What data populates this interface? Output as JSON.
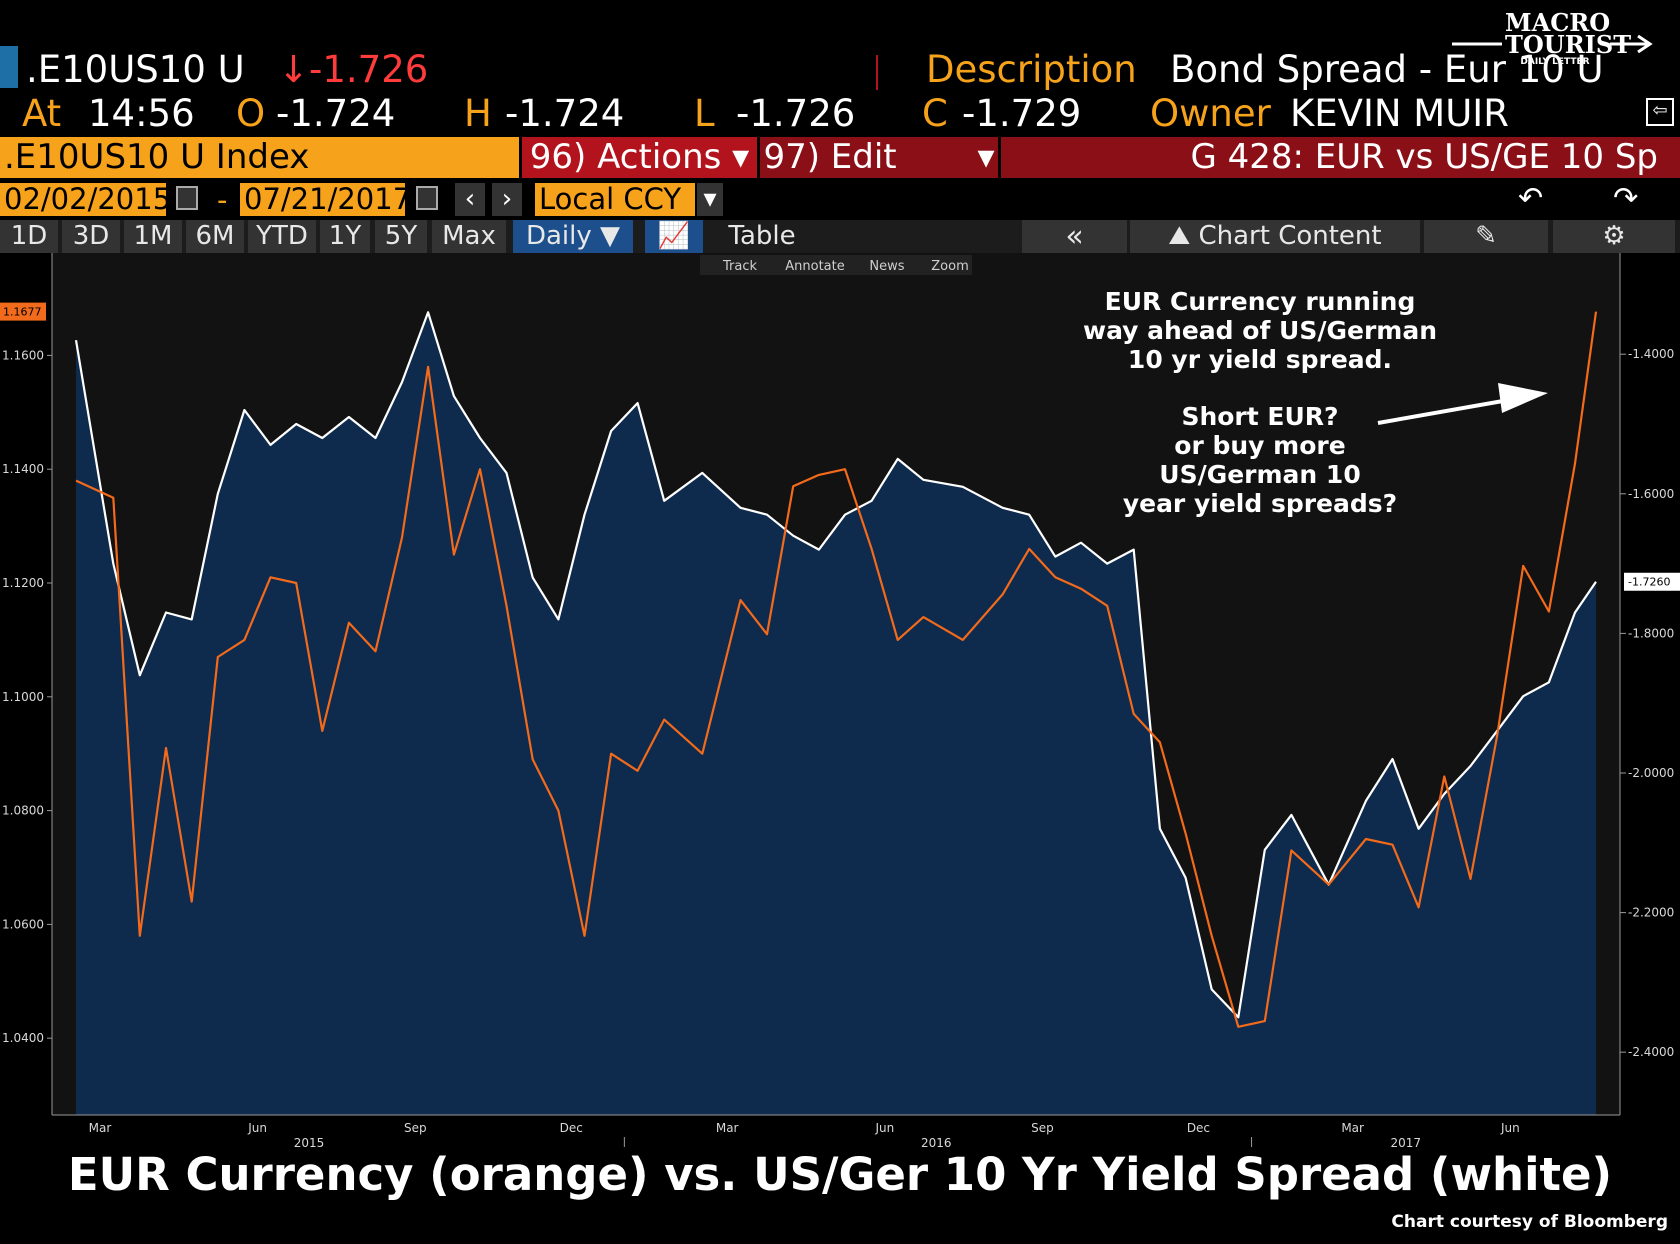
{
  "header": {
    "ticker": ".E10US10 U",
    "last_change": "↓-1.726",
    "description_label": "Description",
    "description_value": "Bond Spread - Eur 10 U",
    "at_label": "At",
    "time": "14:56",
    "open_label": "O",
    "open": "-1.724",
    "high_label": "H",
    "high": "-1.724",
    "low_label": "L",
    "low": "-1.726",
    "close_label": "C",
    "close": "-1.729",
    "owner_label": "Owner",
    "owner": "KEVIN MUIR"
  },
  "logo": {
    "line1": "MACRO",
    "line2": "TOURIST",
    "line3": "DAILY LETTER"
  },
  "commandbar": {
    "index": ".E10US10 U Index",
    "actions": "96) Actions ▾",
    "edit": "97) Edit",
    "edit_arrow": "▾",
    "graph_title": "G 428: EUR vs US/GE 10 Sp"
  },
  "datebar": {
    "start": "02/02/2015",
    "dash": "-",
    "end": "07/21/2017",
    "currency": "Local CCY",
    "currency_arrow": "▾"
  },
  "toolbar": {
    "ranges": [
      "1D",
      "3D",
      "1M",
      "6M",
      "YTD",
      "1Y",
      "5Y",
      "Max"
    ],
    "frequency": "Daily ▼",
    "table": "Table",
    "collapse": "«",
    "chart_content": "Chart Content",
    "subtools": [
      "Track",
      "Annotate",
      "News",
      "Zoom"
    ]
  },
  "annotation": {
    "text1": [
      "EUR Currency running",
      "way ahead of US/German",
      "10 yr yield spread."
    ],
    "text2": [
      "Short EUR?",
      "or buy more",
      "US/German 10",
      "year yield spreads?"
    ]
  },
  "footer": {
    "title": "EUR Currency (orange) vs. US/Ger 10 Yr Yield Spread (white)",
    "credit": "Chart courtesy of Bloomberg"
  },
  "colors": {
    "eur": "#f26a1b",
    "spread": "#ffffff",
    "area": "#0e2a4d",
    "plot_bg": "#121212",
    "amber": "#f7a21b"
  },
  "chart_data": {
    "type": "line",
    "x_labels": [
      "Mar",
      "Jun",
      "Sep",
      "Dec",
      "Mar",
      "Jun",
      "Sep",
      "Dec",
      "Mar",
      "Jun"
    ],
    "year_labels": [
      "2015",
      "2016",
      "2017"
    ],
    "left_axis": {
      "ticks": [
        "1.1600",
        "1.1400",
        "1.1200",
        "1.1000",
        "1.0800",
        "1.0600",
        "1.0400"
      ],
      "ylim": [
        1.0265,
        1.178
      ],
      "last_label": "1.1677"
    },
    "right_axis": {
      "ticks": [
        "-1.4000",
        "-1.6000",
        "-1.8000",
        "-2.0000",
        "-2.2000",
        "-2.4000"
      ],
      "ylim": [
        -2.49,
        -1.255
      ],
      "last_label": "-1.7260"
    },
    "series": [
      {
        "name": "EUR Currency",
        "axis": "left",
        "x": [
          "2015-02",
          "2015-03",
          "2015-03",
          "2015-04",
          "2015-04",
          "2015-05",
          "2015-05",
          "2015-06",
          "2015-06",
          "2015-07",
          "2015-07",
          "2015-08",
          "2015-08",
          "2015-09",
          "2015-09",
          "2015-10",
          "2015-10",
          "2015-11",
          "2015-11",
          "2015-12",
          "2015-12",
          "2016-01",
          "2016-01",
          "2016-02",
          "2016-03",
          "2016-03",
          "2016-04",
          "2016-04",
          "2016-05",
          "2016-05",
          "2016-06",
          "2016-06",
          "2016-07",
          "2016-08",
          "2016-08",
          "2016-09",
          "2016-09",
          "2016-10",
          "2016-10",
          "2016-11",
          "2016-11",
          "2016-12",
          "2016-12",
          "2017-01",
          "2017-01",
          "2017-02",
          "2017-03",
          "2017-03",
          "2017-04",
          "2017-04",
          "2017-05",
          "2017-05",
          "2017-06",
          "2017-06",
          "2017-07",
          "2017-07"
        ],
        "values": [
          1.138,
          1.135,
          1.058,
          1.091,
          1.064,
          1.107,
          1.11,
          1.121,
          1.12,
          1.094,
          1.113,
          1.108,
          1.128,
          1.158,
          1.125,
          1.14,
          1.116,
          1.089,
          1.08,
          1.058,
          1.09,
          1.087,
          1.096,
          1.09,
          1.117,
          1.111,
          1.137,
          1.139,
          1.14,
          1.126,
          1.11,
          1.114,
          1.11,
          1.118,
          1.126,
          1.121,
          1.119,
          1.116,
          1.097,
          1.092,
          1.076,
          1.058,
          1.042,
          1.043,
          1.073,
          1.067,
          1.075,
          1.074,
          1.063,
          1.086,
          1.068,
          1.093,
          1.123,
          1.115,
          1.141,
          1.1677
        ]
      },
      {
        "name": "US/Ger 10 Yr Yield Spread",
        "axis": "right",
        "x": [
          "2015-02",
          "2015-03",
          "2015-03",
          "2015-04",
          "2015-04",
          "2015-05",
          "2015-05",
          "2015-06",
          "2015-06",
          "2015-07",
          "2015-07",
          "2015-08",
          "2015-08",
          "2015-09",
          "2015-09",
          "2015-10",
          "2015-10",
          "2015-11",
          "2015-11",
          "2015-12",
          "2015-12",
          "2016-01",
          "2016-01",
          "2016-02",
          "2016-03",
          "2016-03",
          "2016-04",
          "2016-04",
          "2016-05",
          "2016-05",
          "2016-06",
          "2016-06",
          "2016-07",
          "2016-08",
          "2016-08",
          "2016-09",
          "2016-09",
          "2016-10",
          "2016-10",
          "2016-11",
          "2016-11",
          "2016-12",
          "2016-12",
          "2017-01",
          "2017-01",
          "2017-02",
          "2017-03",
          "2017-03",
          "2017-04",
          "2017-04",
          "2017-05",
          "2017-05",
          "2017-06",
          "2017-06",
          "2017-07",
          "2017-07"
        ],
        "values": [
          -1.38,
          -1.7,
          -1.86,
          -1.77,
          -1.78,
          -1.6,
          -1.48,
          -1.53,
          -1.5,
          -1.52,
          -1.49,
          -1.52,
          -1.44,
          -1.34,
          -1.46,
          -1.52,
          -1.57,
          -1.72,
          -1.78,
          -1.63,
          -1.51,
          -1.47,
          -1.61,
          -1.57,
          -1.62,
          -1.63,
          -1.66,
          -1.68,
          -1.63,
          -1.61,
          -1.55,
          -1.58,
          -1.59,
          -1.62,
          -1.63,
          -1.69,
          -1.67,
          -1.7,
          -1.68,
          -2.08,
          -2.15,
          -2.31,
          -2.35,
          -2.11,
          -2.06,
          -2.16,
          -2.04,
          -1.98,
          -2.08,
          -2.03,
          -1.99,
          -1.94,
          -1.89,
          -1.87,
          -1.77,
          -1.726
        ]
      }
    ],
    "grid": false,
    "legend": "none"
  }
}
